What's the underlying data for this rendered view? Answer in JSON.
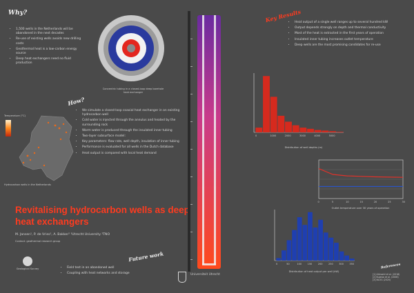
{
  "header": {
    "title": "Revitalising hydrocarbon wells as deep heat exchangers"
  },
  "why": {
    "heading": "Why?",
    "items": [
      "1,500 wells in the Netherlands will be abandoned in the next decades",
      "Re-use of existing wells avoids new drilling costs",
      "Geothermal heat is a low-carbon energy source",
      "Deep heat exchangers need no fluid production"
    ]
  },
  "target": {
    "caption": "Concentric tubing in a closed-loop deep borehole heat exchanger"
  },
  "how": {
    "heading": "How?",
    "items": [
      "We simulate a closed-loop coaxial heat exchanger in an existing hydrocarbon well",
      "Cold water is injected through the annulus and heated by the surrounding rock",
      "Warm water is produced through the insulated inner tubing",
      "Two-layer subsurface model:",
      "Key parameters: flow rate, well depth, insulation of inner tubing",
      "Performance is evaluated for all wells in the Dutch database",
      "Heat output is compared with local heat demand"
    ]
  },
  "map": {
    "legend_title": "Temperature (°C)",
    "caption": "Hydrocarbon wells in the Netherlands"
  },
  "results": {
    "heading": "Key Results",
    "items": [
      "Heat output of a single well ranges up to several hundred kW",
      "Output depends strongly on depth and thermal conductivity",
      "Most of the heat is extracted in the first years of operation",
      "Insulated inner tubing increases outlet temperature",
      "Deep wells are the most promising candidates for re-use"
    ]
  },
  "charts_captions": {
    "hist1": "Distribution of well depths (m)",
    "line": "Outlet temperature over 30 years of operation",
    "hist2": "Distribution of heat output per well (kW)"
  },
  "authors": {
    "line": "M. Jansen¹, P. de Vries¹, A. Bakker²  ¹Utrecht University ²TNO",
    "sub": "Contact: geothermal research group"
  },
  "future": {
    "heading": "Future work",
    "items": [
      "Field test in an abandoned well",
      "Coupling with heat networks and storage"
    ]
  },
  "logos": {
    "left": "Geological Survey",
    "right": "Universiteit Utrecht"
  },
  "refs": {
    "heading": "References",
    "items": [
      "[1] Alimonti et al. (2018)",
      "[2] Kujawa et al. (2006)",
      "[3] NLOG (2020)"
    ]
  },
  "chart_data": [
    {
      "type": "bar",
      "title": "",
      "xlabel": "Depth (m)",
      "ylabel": "Count",
      "categories": [
        "0",
        "500",
        "1000",
        "1500",
        "2000",
        "2500",
        "3000",
        "3500",
        "4000",
        "4500",
        "5000",
        "5500"
      ],
      "values": [
        8,
        95,
        60,
        28,
        18,
        12,
        8,
        6,
        4,
        3,
        2,
        1
      ],
      "ylim": [
        0,
        100
      ],
      "color": "#d62a1e"
    },
    {
      "type": "line",
      "title": "",
      "xlabel": "Time (years)",
      "ylabel": "Temperature (°C)",
      "x": [
        0,
        5,
        10,
        15,
        20,
        25,
        30
      ],
      "series": [
        {
          "name": "Outlet",
          "values": [
            62,
            50,
            47,
            46,
            45,
            44.5,
            44
          ],
          "color": "#e0322a"
        },
        {
          "name": "Inlet",
          "values": [
            25,
            25,
            25,
            25,
            25,
            25,
            25
          ],
          "color": "#2a55c8"
        }
      ],
      "ylim": [
        0,
        80
      ]
    },
    {
      "type": "bar",
      "title": "",
      "xlabel": "Heat output (kW)",
      "ylabel": "Count",
      "categories": [
        "0",
        "25",
        "50",
        "75",
        "100",
        "125",
        "150",
        "175",
        "200",
        "225",
        "250",
        "275",
        "300",
        "325",
        "350"
      ],
      "values": [
        5,
        20,
        40,
        60,
        85,
        70,
        95,
        65,
        80,
        55,
        45,
        35,
        18,
        10,
        4
      ],
      "ylim": [
        0,
        100
      ],
      "color": "#1f3fb0"
    }
  ]
}
